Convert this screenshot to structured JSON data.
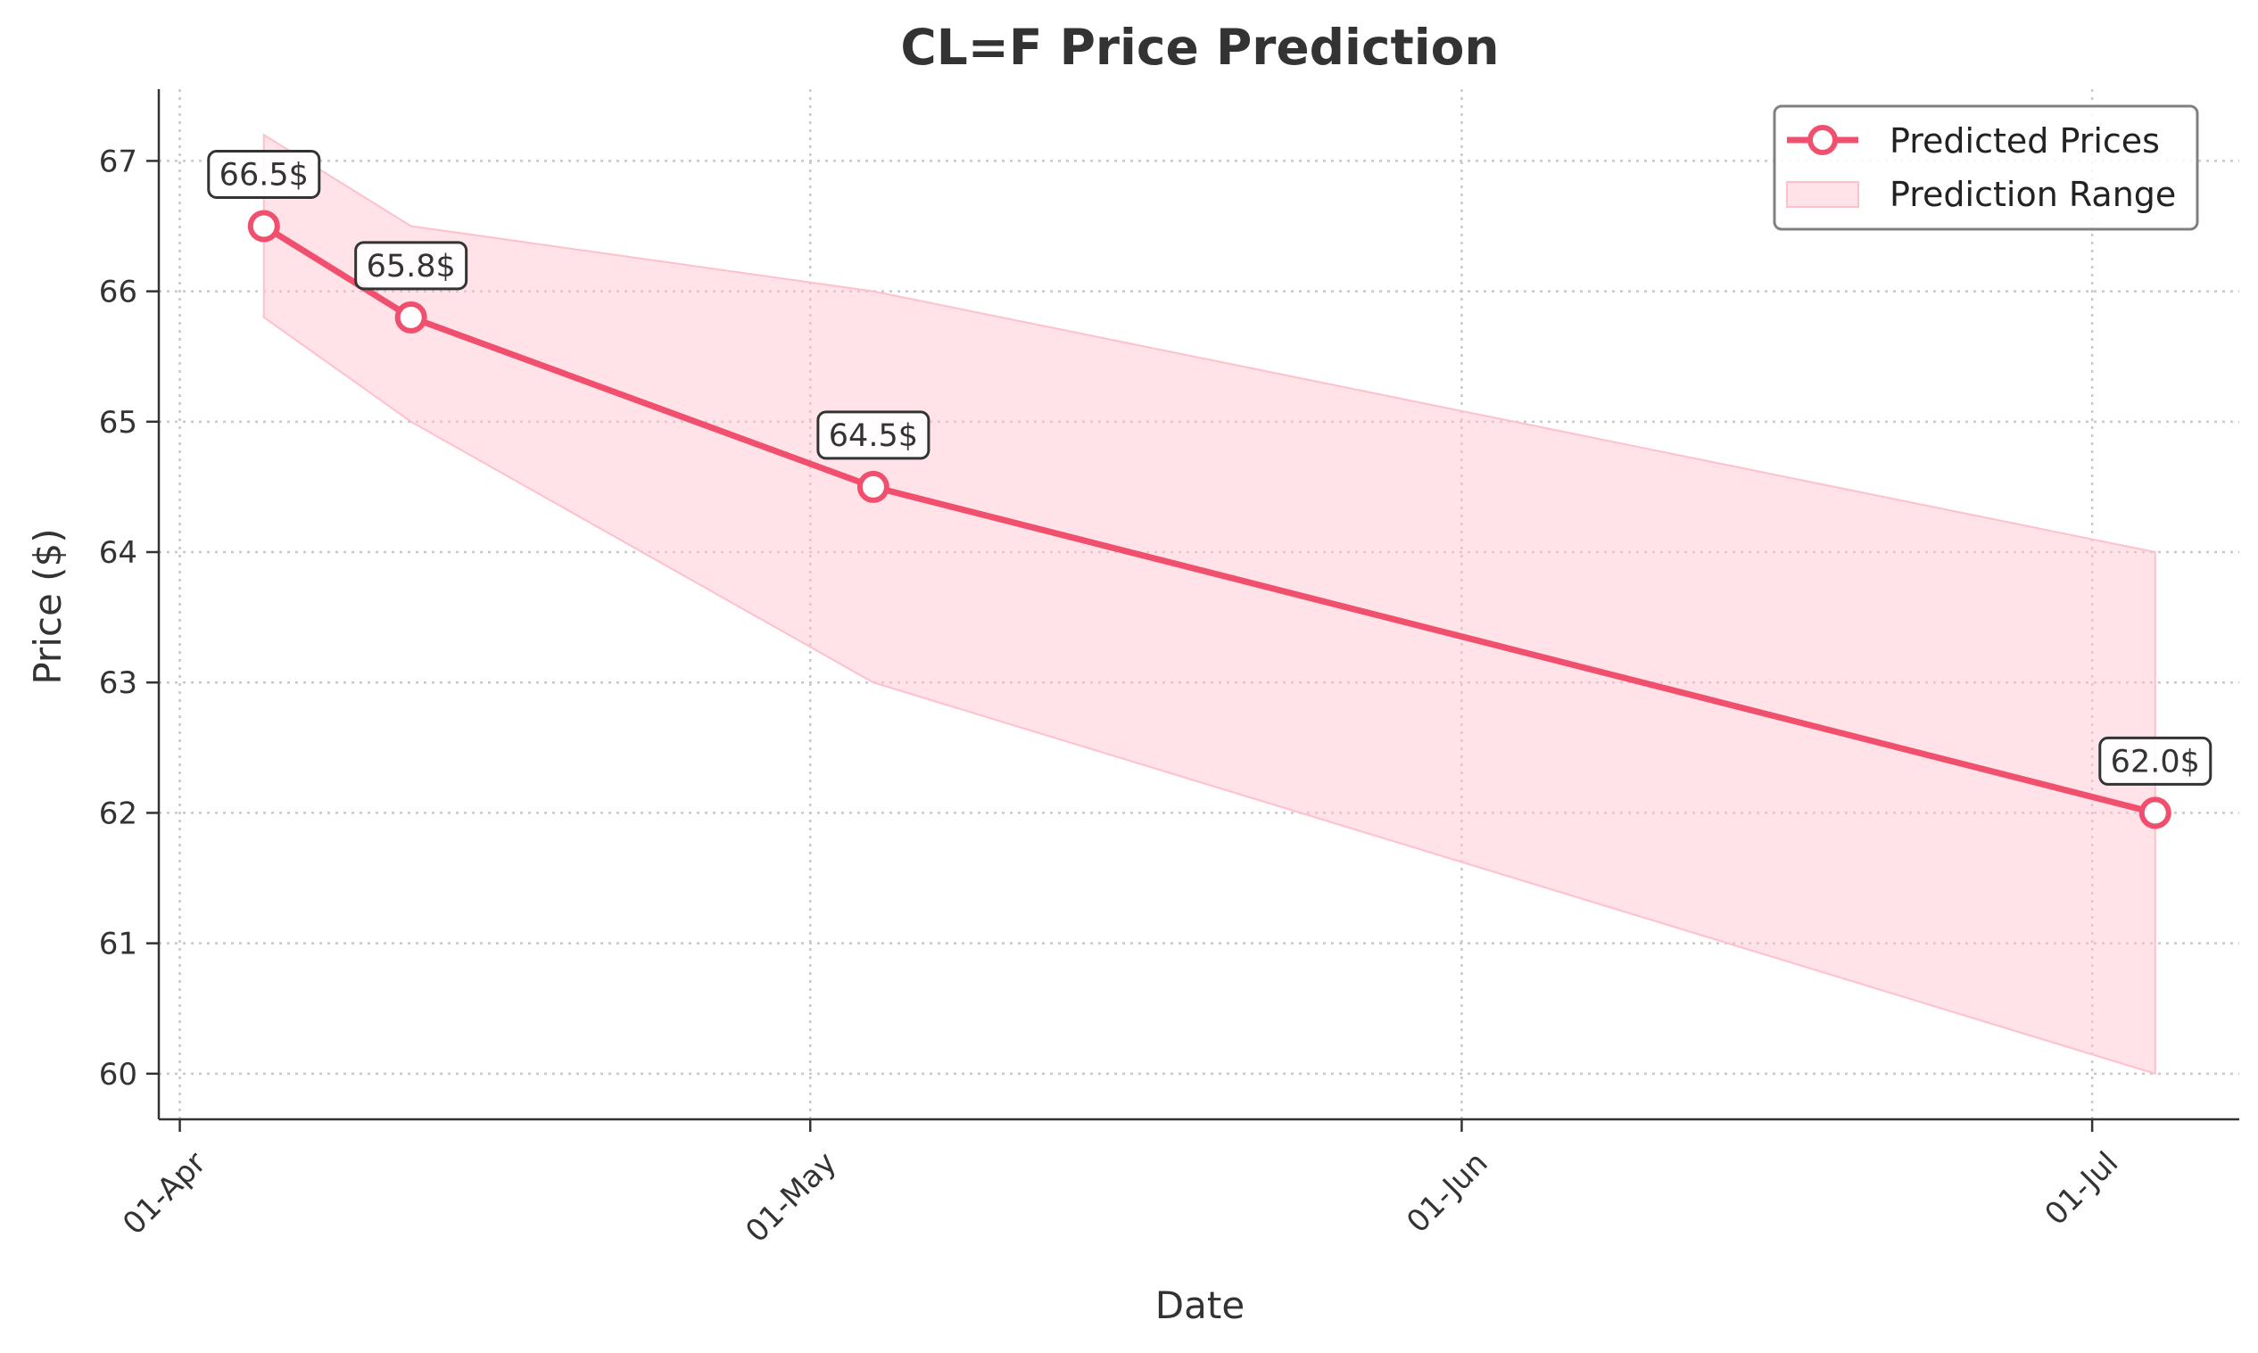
{
  "chart_data": {
    "type": "line",
    "title": "CL=F Price Prediction",
    "xlabel": "Date",
    "ylabel": "Price ($)",
    "x_ticks": [
      "01-Apr",
      "01-May",
      "01-Jun",
      "01-Jul"
    ],
    "y_ticks": [
      60,
      61,
      62,
      63,
      64,
      65,
      66,
      67
    ],
    "ylim": [
      59.65,
      67.55
    ],
    "xlim": [
      "2025-03-31",
      "2025-07-08"
    ],
    "grid": true,
    "legend_position": "upper-right",
    "series": [
      {
        "name": "Predicted Prices",
        "color": "#f0506e",
        "marker": "circle-open",
        "points": [
          {
            "x": "2025-04-05",
            "y": 66.5,
            "label": "66.5$"
          },
          {
            "x": "2025-04-12",
            "y": 65.8,
            "label": "65.8$"
          },
          {
            "x": "2025-05-04",
            "y": 64.5,
            "label": "64.5$"
          },
          {
            "x": "2025-07-04",
            "y": 62.0,
            "label": "62.0$"
          }
        ]
      },
      {
        "name": "Prediction Range",
        "type": "area",
        "color": "#ffc0cb",
        "points": [
          {
            "x": "2025-04-05",
            "low": 65.8,
            "high": 67.2
          },
          {
            "x": "2025-04-12",
            "low": 65.0,
            "high": 66.5
          },
          {
            "x": "2025-05-04",
            "low": 63.0,
            "high": 66.0
          },
          {
            "x": "2025-07-04",
            "low": 60.0,
            "high": 64.0
          }
        ]
      }
    ]
  }
}
